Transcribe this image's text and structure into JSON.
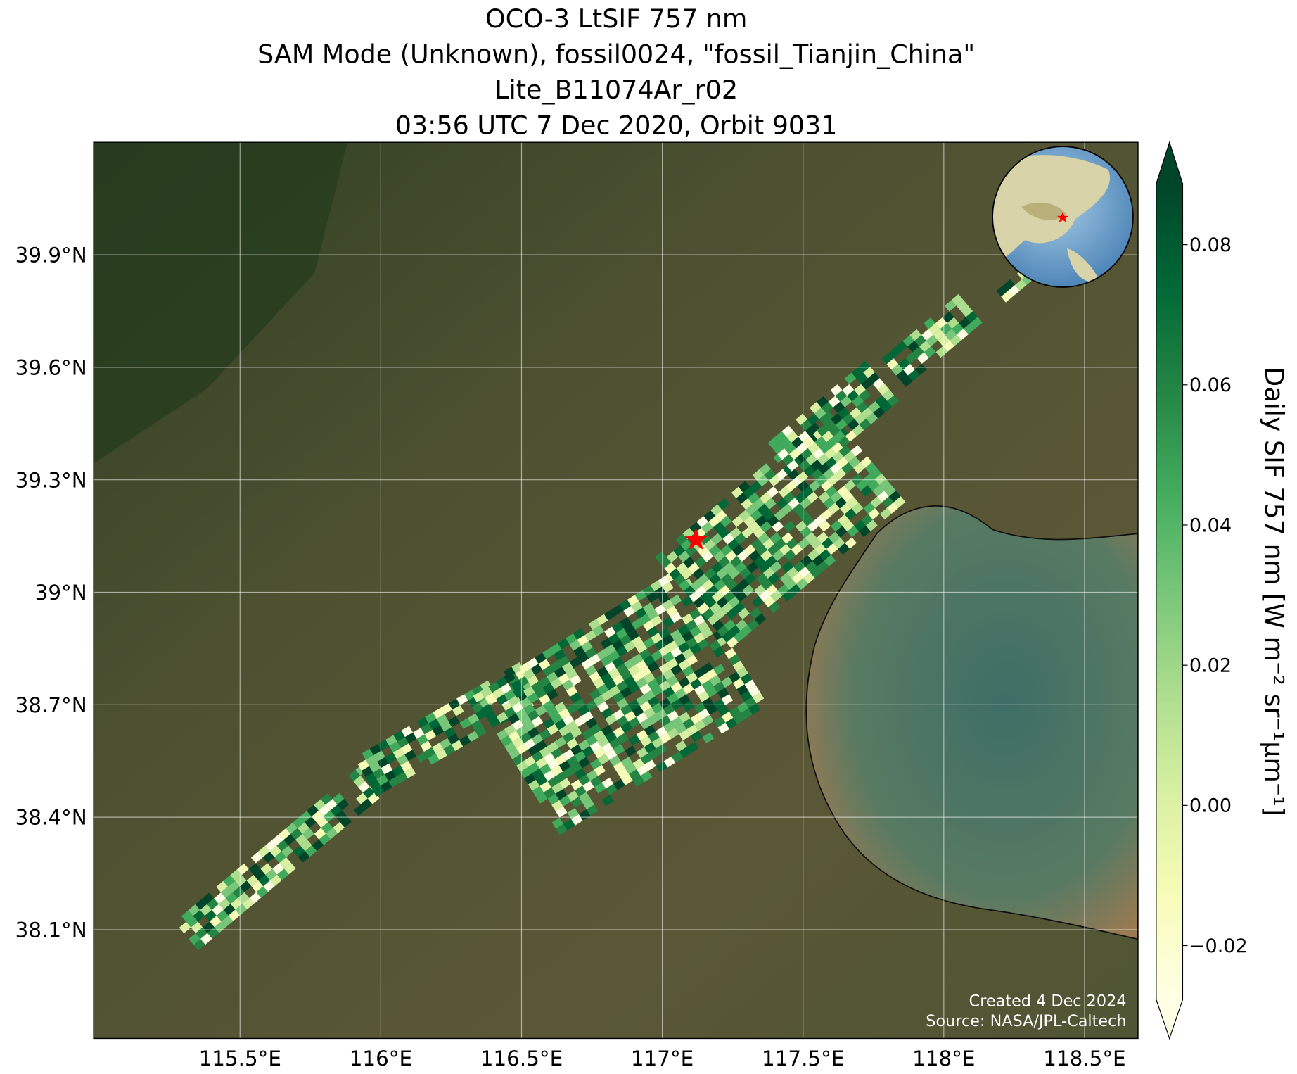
{
  "chart_data": {
    "type": "map",
    "title": [
      "OCO-3 LtSIF 757 nm",
      "SAM Mode (Unknown), fossil0024, \"fossil_Tianjin_China\"",
      "Lite_B11074Ar_r02",
      "03:56 UTC 7 Dec 2020, Orbit 9031"
    ],
    "xlim": [
      114.98,
      118.69
    ],
    "ylim": [
      37.81,
      40.2
    ],
    "xticks": [
      {
        "value": 115.5,
        "label": "115.5°E"
      },
      {
        "value": 116,
        "label": "116°E"
      },
      {
        "value": 116.5,
        "label": "116.5°E"
      },
      {
        "value": 117,
        "label": "117°E"
      },
      {
        "value": 117.5,
        "label": "117.5°E"
      },
      {
        "value": 118,
        "label": "118°E"
      },
      {
        "value": 118.5,
        "label": "118.5°E"
      }
    ],
    "yticks": [
      {
        "value": 38.1,
        "label": "38.1°N"
      },
      {
        "value": 38.4,
        "label": "38.4°N"
      },
      {
        "value": 38.7,
        "label": "38.7°N"
      },
      {
        "value": 39,
        "label": "39°N"
      },
      {
        "value": 39.3,
        "label": "39.3°N"
      },
      {
        "value": 39.6,
        "label": "39.6°N"
      },
      {
        "value": 39.9,
        "label": "39.9°N"
      }
    ],
    "grid": true,
    "site": {
      "lon": 117.12,
      "lat": 39.14,
      "color": "#ff0000"
    },
    "colorbar": {
      "label": "Daily SIF 757 nm [W m⁻² sr⁻¹μm⁻¹]",
      "lim": [
        -0.0277,
        0.0887
      ],
      "ticks": [
        {
          "value": -0.02,
          "label": "−0.02"
        },
        {
          "value": 0,
          "label": "0.00"
        },
        {
          "value": 0.02,
          "label": "0.02"
        },
        {
          "value": 0.04,
          "label": "0.04"
        },
        {
          "value": 0.06,
          "label": "0.06"
        },
        {
          "value": 0.08,
          "label": "0.08"
        }
      ],
      "colors": [
        "#ffffe5",
        "#f7fcb9",
        "#d9f0a3",
        "#addd8e",
        "#78c679",
        "#41ab5d",
        "#238443",
        "#006837",
        "#004529"
      ]
    },
    "annotations": [
      "Created 4 Dec 2024",
      "Source: NASA/JPL-Caltech"
    ]
  }
}
